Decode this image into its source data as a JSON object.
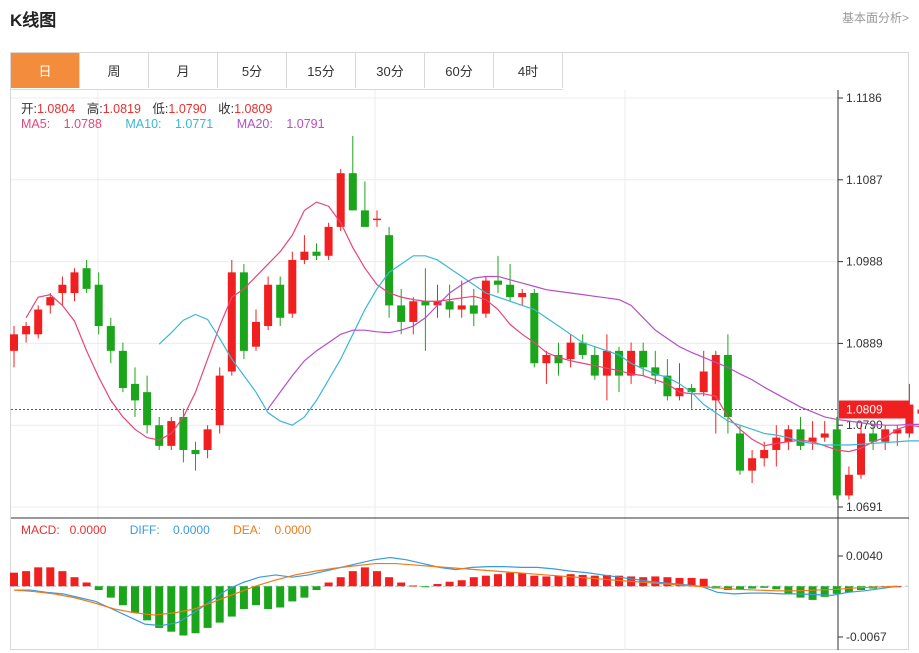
{
  "header": {
    "title": "K线图",
    "link": "基本面分析>"
  },
  "tabs": [
    "日",
    "周",
    "月",
    "5分",
    "15分",
    "30分",
    "60分",
    "4时"
  ],
  "ohlc": {
    "open_label": "开:",
    "open": "1.0804",
    "high_label": "高:",
    "high": "1.0819",
    "low_label": "低:",
    "low": "1.0790",
    "close_label": "收:",
    "close": "1.0809"
  },
  "ma": {
    "ma5_label": "MA5: ",
    "ma5": "1.0788",
    "ma5_color": "#e8457a",
    "ma10_label": "MA10: ",
    "ma10": "1.0771",
    "ma10_color": "#3ab7d6",
    "ma20_label": "MA20: ",
    "ma20": "1.0791",
    "ma20_color": "#b34fc7"
  },
  "macd": {
    "macd_label": "MACD:",
    "macd": "0.0000",
    "macd_color": "#e83030",
    "diff_label": "DIFF: ",
    "diff": "0.0000",
    "diff_color": "#3a9be0",
    "dea_label": "DEA: ",
    "dea": "0.0000",
    "dea_color": "#f07a1a"
  },
  "colors": {
    "up": "#f02020",
    "down": "#1aa51a",
    "price_tag": "#f02020"
  },
  "chart_data": {
    "type": "candlestick",
    "price_axis": {
      "ticks": [
        "1.1186",
        "1.1087",
        "1.0988",
        "1.0889",
        "1.0790",
        "1.0691"
      ],
      "ylim": [
        1.0691,
        1.1186
      ]
    },
    "last_price": "1.0809",
    "candles": [
      [
        1.088,
        1.091,
        1.086,
        1.09
      ],
      [
        1.09,
        1.0915,
        1.089,
        1.091
      ],
      [
        1.09,
        1.0935,
        1.0895,
        1.093
      ],
      [
        1.0935,
        1.095,
        1.0925,
        1.0945
      ],
      [
        1.095,
        1.097,
        1.0935,
        1.096
      ],
      [
        1.095,
        1.098,
        1.094,
        1.0975
      ],
      [
        1.098,
        1.099,
        1.095,
        1.0955
      ],
      [
        1.096,
        1.0975,
        1.09,
        1.091
      ],
      [
        1.091,
        1.092,
        1.0865,
        1.088
      ],
      [
        1.088,
        1.089,
        1.083,
        1.0835
      ],
      [
        1.084,
        1.086,
        1.08,
        1.082
      ],
      [
        1.083,
        1.085,
        1.078,
        1.079
      ],
      [
        1.079,
        1.08,
        1.076,
        1.0765
      ],
      [
        1.0765,
        1.08,
        1.076,
        1.0795
      ],
      [
        1.08,
        1.081,
        1.0745,
        1.076
      ],
      [
        1.076,
        1.077,
        1.0735,
        1.0755
      ],
      [
        1.076,
        1.079,
        1.075,
        1.0785
      ],
      [
        1.079,
        1.086,
        1.078,
        1.085
      ],
      [
        1.0855,
        1.099,
        1.085,
        1.0975
      ],
      [
        1.0975,
        1.0985,
        1.087,
        1.088
      ],
      [
        1.0885,
        1.093,
        1.088,
        1.0915
      ],
      [
        1.091,
        1.097,
        1.0905,
        1.096
      ],
      [
        1.096,
        1.097,
        1.091,
        1.092
      ],
      [
        1.0925,
        1.1,
        1.092,
        1.099
      ],
      [
        1.099,
        1.102,
        1.0985,
        1.1
      ],
      [
        1.1,
        1.101,
        1.099,
        1.0995
      ],
      [
        1.0995,
        1.1035,
        1.099,
        1.103
      ],
      [
        1.103,
        1.11,
        1.1025,
        1.1095
      ],
      [
        1.1095,
        1.114,
        1.105,
        1.105
      ],
      [
        1.105,
        1.1085,
        1.103,
        1.103
      ],
      [
        1.104,
        1.105,
        1.103,
        1.104
      ],
      [
        1.102,
        1.103,
        1.092,
        1.0935
      ],
      [
        1.0935,
        1.0955,
        1.09,
        1.0915
      ],
      [
        1.0915,
        1.0945,
        1.09,
        1.094
      ],
      [
        1.094,
        1.098,
        1.088,
        1.0935
      ],
      [
        1.0935,
        1.096,
        1.092,
        1.094
      ],
      [
        1.094,
        1.096,
        1.092,
        1.093
      ],
      [
        1.093,
        1.0965,
        1.092,
        1.0935
      ],
      [
        1.0935,
        1.0955,
        1.091,
        1.0925
      ],
      [
        1.0925,
        1.097,
        1.092,
        1.0965
      ],
      [
        1.0965,
        1.0995,
        1.095,
        1.096
      ],
      [
        1.096,
        1.0985,
        1.094,
        1.0945
      ],
      [
        1.0945,
        1.0955,
        1.0935,
        1.095
      ],
      [
        1.095,
        1.0955,
        1.086,
        1.0865
      ],
      [
        1.0865,
        1.088,
        1.084,
        1.0875
      ],
      [
        1.0875,
        1.089,
        1.085,
        1.0865
      ],
      [
        1.087,
        1.09,
        1.086,
        1.089
      ],
      [
        1.089,
        1.09,
        1.087,
        1.0875
      ],
      [
        1.0875,
        1.0885,
        1.0845,
        1.085
      ],
      [
        1.085,
        1.09,
        1.082,
        1.088
      ],
      [
        1.088,
        1.0885,
        1.083,
        1.085
      ],
      [
        1.085,
        1.089,
        1.084,
        1.088
      ],
      [
        1.088,
        1.089,
        1.085,
        1.086
      ],
      [
        1.086,
        1.088,
        1.084,
        1.085
      ],
      [
        1.085,
        1.087,
        1.082,
        1.0825
      ],
      [
        1.0825,
        1.0865,
        1.082,
        1.0835
      ],
      [
        1.0835,
        1.084,
        1.081,
        1.083
      ],
      [
        1.083,
        1.088,
        1.0825,
        1.0855
      ],
      [
        1.082,
        1.088,
        1.078,
        1.0875
      ],
      [
        1.0875,
        1.09,
        1.078,
        1.08
      ],
      [
        1.078,
        1.079,
        1.073,
        1.0735
      ],
      [
        1.0735,
        1.076,
        1.072,
        1.075
      ],
      [
        1.075,
        1.077,
        1.074,
        1.076
      ],
      [
        1.076,
        1.079,
        1.074,
        1.0775
      ],
      [
        1.077,
        1.079,
        1.076,
        1.0785
      ],
      [
        1.0785,
        1.08,
        1.076,
        1.0765
      ],
      [
        1.077,
        1.0795,
        1.076,
        1.0775
      ],
      [
        1.0775,
        1.0795,
        1.077,
        1.078
      ],
      [
        1.0785,
        1.08,
        1.07,
        1.0705
      ],
      [
        1.0705,
        1.074,
        1.07,
        1.073
      ],
      [
        1.073,
        1.079,
        1.0725,
        1.078
      ],
      [
        1.078,
        1.079,
        1.076,
        1.077
      ],
      [
        1.077,
        1.079,
        1.076,
        1.0785
      ],
      [
        1.078,
        1.079,
        1.0765,
        1.0785
      ],
      [
        1.078,
        1.084,
        1.0775,
        1.0815
      ],
      [
        1.0804,
        1.0819,
        1.079,
        1.0809
      ]
    ],
    "ma_series": [
      {
        "name": "MA5",
        "values": [
          1.092,
          1.0945,
          1.0948,
          1.0935,
          1.0916,
          1.088,
          1.0848,
          1.082,
          1.08,
          1.0785,
          1.0775,
          1.0772,
          1.078,
          1.08,
          1.083,
          1.087,
          1.091,
          1.0945,
          1.0955,
          1.097,
          1.0985,
          1.1,
          1.102,
          1.105,
          1.106,
          1.1055,
          1.1035,
          1.1005,
          1.098,
          1.096,
          1.095,
          1.0945,
          1.0942,
          1.094,
          1.094,
          1.0942,
          1.0944,
          1.0946,
          1.0942,
          1.093,
          1.0912,
          1.09,
          1.089,
          1.0878,
          1.0872,
          1.0868,
          1.0865,
          1.0862,
          1.0859,
          1.0856,
          1.0852,
          1.085,
          1.0845,
          1.084,
          1.083,
          1.0828,
          1.0828,
          1.0825,
          1.08,
          1.0785,
          1.0773,
          1.0765,
          1.0768,
          1.077,
          1.0772,
          1.077,
          1.0765,
          1.076,
          1.0758,
          1.0762,
          1.077,
          1.0775,
          1.0785,
          1.079,
          1.0788
        ]
      },
      {
        "name": "MA10",
        "values": [
          1.0888,
          1.0902,
          1.0917,
          1.0924,
          1.0918,
          1.0895,
          1.087,
          1.085,
          1.083,
          1.0805,
          1.0795,
          1.079,
          1.08,
          1.082,
          1.0845,
          1.087,
          1.09,
          1.093,
          1.0955,
          1.0975,
          1.0985,
          1.0995,
          1.0995,
          1.099,
          1.098,
          1.097,
          1.096,
          1.095,
          1.0945,
          1.094,
          1.0935,
          1.093,
          1.092,
          1.091,
          1.09,
          1.089,
          1.0885,
          1.088,
          1.0875,
          1.0865,
          1.0858,
          1.0852,
          1.0848,
          1.084,
          1.083,
          1.0815,
          1.0805,
          1.0795,
          1.079,
          1.0785,
          1.078,
          1.0778,
          1.0775,
          1.077,
          1.0768,
          1.0766,
          1.0766,
          1.0766,
          1.0767,
          1.0768,
          1.0769,
          1.077,
          1.0771,
          1.0771
        ]
      },
      {
        "name": "MA20",
        "values": [
          1.081,
          1.083,
          1.085,
          1.0868,
          1.088,
          1.089,
          1.09,
          1.0905,
          1.0905,
          1.0903,
          1.0902,
          1.0905,
          1.091,
          1.092,
          1.0935,
          1.095,
          1.096,
          1.0968,
          1.097,
          1.097,
          1.0966,
          1.0962,
          1.0958,
          1.0954,
          1.0952,
          1.095,
          1.0948,
          1.0946,
          1.0944,
          1.0942,
          1.0935,
          1.092,
          1.0905,
          1.0895,
          1.0885,
          1.0878,
          1.0872,
          1.0866,
          1.086,
          1.0852,
          1.0845,
          1.0836,
          1.0828,
          1.082,
          1.0812,
          1.0806,
          1.08,
          1.0797,
          1.0795,
          1.0793,
          1.0791,
          1.079,
          1.079,
          1.0791,
          1.0791
        ]
      }
    ],
    "macd_axis": {
      "ticks": [
        "0.0040",
        "-0.0067"
      ]
    },
    "macd_hist": [
      0.0018,
      0.002,
      0.0025,
      0.0025,
      0.002,
      0.0012,
      0.0005,
      -0.0005,
      -0.0015,
      -0.0025,
      -0.0035,
      -0.0045,
      -0.0055,
      -0.006,
      -0.0065,
      -0.0062,
      -0.0055,
      -0.0048,
      -0.004,
      -0.003,
      -0.0025,
      -0.003,
      -0.0028,
      -0.002,
      -0.0015,
      -0.0005,
      0.0005,
      0.0012,
      0.002,
      0.0025,
      0.002,
      0.0012,
      0.0005,
      0.0001,
      -0.0001,
      0.0003,
      0.0006,
      0.0008,
      0.0012,
      0.0014,
      0.0016,
      0.0018,
      0.0017,
      0.0014,
      0.0013,
      0.0014,
      0.0016,
      0.0015,
      0.0014,
      0.0015,
      0.0014,
      0.0013,
      0.0012,
      0.0013,
      0.0012,
      0.0011,
      0.0011,
      0.001,
      -0.0003,
      -0.0005,
      -0.0004,
      -0.0003,
      -0.0002,
      -0.0004,
      -0.001,
      -0.0015,
      -0.0018,
      -0.0014,
      -0.001,
      -0.0008,
      -0.0005,
      -0.0003,
      -0.0001,
      0.0
    ],
    "macd_diff": [
      -0.0005,
      -0.0005,
      -0.0008,
      -0.001,
      -0.0015,
      -0.002,
      -0.003,
      -0.004,
      -0.005,
      -0.0052,
      -0.0048,
      -0.0035,
      -0.002,
      -0.0005,
      0.0005,
      0.0012,
      0.0015,
      0.0012,
      0.0015,
      0.002,
      0.0025,
      0.003,
      0.0035,
      0.0038,
      0.0035,
      0.003,
      0.0025,
      0.0022,
      0.0025,
      0.0026,
      0.0026,
      0.0025,
      0.0025,
      0.0023,
      0.002,
      0.0018,
      0.0015,
      0.0012,
      0.0009,
      0.0006,
      0.0004,
      0.0002,
      0.0,
      -0.0008,
      -0.001,
      -0.0009,
      -0.0009,
      -0.001,
      -0.001,
      -0.0011,
      -0.0012,
      -0.0008,
      -0.0006,
      -0.0003,
      0.0
    ],
    "macd_dea": [
      -0.0005,
      -0.0007,
      -0.001,
      -0.0015,
      -0.0022,
      -0.003,
      -0.0035,
      -0.0038,
      -0.0035,
      -0.003,
      -0.002,
      -0.001,
      0.0,
      0.0008,
      0.0015,
      0.002,
      0.0024,
      0.0027,
      0.003,
      0.003,
      0.0028,
      0.0026,
      0.0024,
      0.0022,
      0.002,
      0.0018,
      0.0016,
      0.0014,
      0.0012,
      0.001,
      0.0008,
      0.0006,
      0.0004,
      0.0002,
      0.0,
      -0.0002,
      -0.0004,
      -0.0005,
      -0.0006,
      -0.0006,
      -0.0005,
      -0.0004,
      -0.0002,
      -0.0001,
      0.0
    ]
  }
}
